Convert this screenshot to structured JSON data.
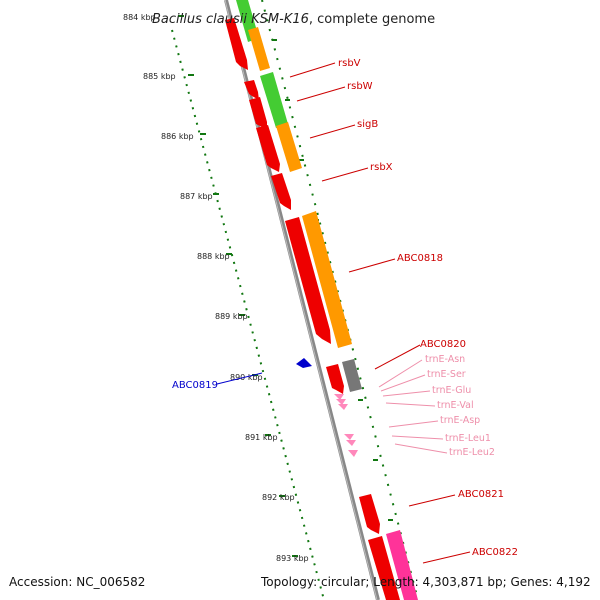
{
  "title": {
    "italic_part": "Bacillus clausii KSM-K16",
    "normal_part": ", complete genome"
  },
  "ticks": [
    "884 kbp",
    "885 kbp",
    "886 kbp",
    "887 kbp",
    "888 kbp",
    "889 kbp",
    "890 kbp",
    "891 kbp",
    "892 kbp",
    "893 kbp"
  ],
  "genes": {
    "rsbV": "rsbV",
    "rsbW": "rsbW",
    "sigB": "sigB",
    "rsbX": "rsbX",
    "ABC0818": "ABC0818",
    "ABC0820": "ABC0820",
    "ABC0819": "ABC0819",
    "ABC0821": "ABC0821",
    "ABC0822": "ABC0822"
  },
  "trnas": [
    "trnE-Asn",
    "trnE-Ser",
    "trnE-Glu",
    "trnE-Val",
    "trnE-Asp",
    "trnE-Leu1",
    "trnE-Leu2"
  ],
  "footer": {
    "accession": "Accession: NC_006582",
    "summary": "Topology: circular; Length: 4,303,871 bp; Genes: 4,192"
  },
  "colors": {
    "cds_red": "#ee0000",
    "cog_orange": "#ff9900",
    "cog_green": "#44cc33",
    "cog_gray": "#777777",
    "cog_pink": "#ff3399",
    "trna_pink": "#ff88bb",
    "reverse_blue": "#0000cc",
    "axis_gray": "#888888",
    "dots_green": "#117711"
  }
}
